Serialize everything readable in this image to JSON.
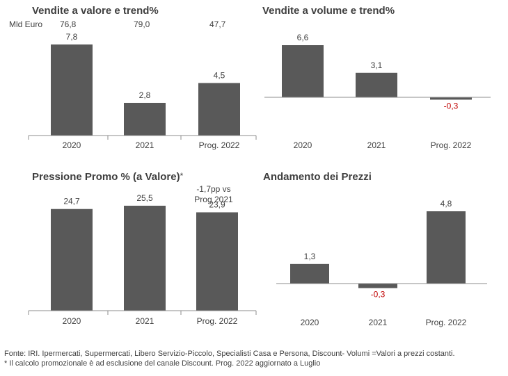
{
  "colors": {
    "bar": "#595959",
    "axis": "#8c8c8c",
    "negative": "#c00000",
    "text": "#404040"
  },
  "chart_data": [
    {
      "type": "bar",
      "title": "Vendite a valore e trend%",
      "categories": [
        "2020",
        "2021",
        "Prog. 2022"
      ],
      "values": [
        7.8,
        2.8,
        4.5
      ],
      "value_labels": [
        "7,8",
        "2,8",
        "4,5"
      ],
      "unit_label": "Mld Euro",
      "top_values": [
        "76,8",
        "79,0",
        "47,7"
      ]
    },
    {
      "type": "bar",
      "title": "Vendite a volume e trend%",
      "categories": [
        "2020",
        "2021",
        "Prog. 2022"
      ],
      "values": [
        6.6,
        3.1,
        -0.3
      ],
      "value_labels": [
        "6,6",
        "3,1",
        "-0,3"
      ]
    },
    {
      "type": "bar",
      "title": "Pressione Promo % (a Valore)",
      "title_mark": "*",
      "categories": [
        "2020",
        "2021",
        "Prog. 2022"
      ],
      "values": [
        24.7,
        25.5,
        23.9
      ],
      "value_labels": [
        "24,7",
        "25,5",
        "23,9"
      ],
      "annotation": [
        "-1,7pp vs",
        "Prog 2021"
      ]
    },
    {
      "type": "bar",
      "title": "Andamento dei Prezzi",
      "categories": [
        "2020",
        "2021",
        "Prog. 2022"
      ],
      "values": [
        1.3,
        -0.3,
        4.8
      ],
      "value_labels": [
        "1,3",
        "-0,3",
        "4,8"
      ]
    }
  ],
  "footer": {
    "line1": "Fonte: IRI. Ipermercati, Supermercati, Libero Servizio-Piccolo, Specialisti Casa e Persona, Discount-  Volumi =Valori a prezzi costanti.",
    "line2": "* Il calcolo promozionale è ad esclusione del canale Discount. Prog. 2022 aggiornato a Luglio"
  }
}
